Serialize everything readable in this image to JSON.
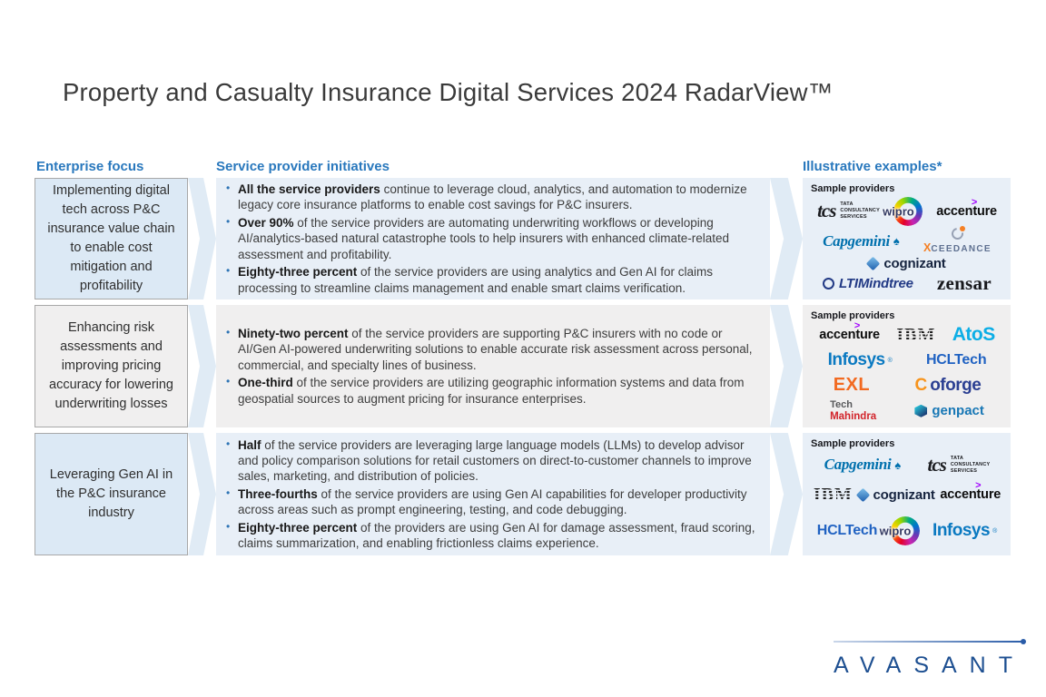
{
  "title": "Property and Casualty Insurance Digital Services 2024 RadarView™",
  "columns": {
    "enterprise_focus": {
      "header": "Enterprise focus"
    },
    "initiatives": {
      "header": "Service provider initiatives"
    },
    "examples": {
      "header": "Illustrative examples*"
    }
  },
  "examples_label": "Sample providers",
  "rows": [
    {
      "tone": "blue",
      "focus": "Implementing digital tech across P&C insurance value chain to enable cost mitigation and profitability",
      "bullets": [
        {
          "lead": "All the service providers",
          "text": "continue to leverage cloud, analytics, and automation to modernize legacy core insurance platforms to enable cost savings for P&C insurers."
        },
        {
          "lead": "Over 90%",
          "text": "of the service providers are automating underwriting workflows or developing AI/analytics-based natural catastrophe tools to help insurers with enhanced climate-related assessment and profitability."
        },
        {
          "lead": "Eighty-three percent",
          "text": "of the service providers are using analytics and Gen AI for claims processing to streamline claims management and enable smart claims verification."
        }
      ],
      "provider_rows": [
        [
          "tcs",
          "wipro",
          "accenture"
        ],
        [
          "capgemini",
          "xceedance"
        ],
        [
          "cognizant"
        ],
        [
          "ltimindtree",
          "zensar"
        ]
      ]
    },
    {
      "tone": "gray",
      "focus": "Enhancing risk assessments and improving pricing accuracy for lowering underwriting losses",
      "bullets": [
        {
          "lead": "Ninety-two percent",
          "text": "of the service providers are supporting P&C insurers with no code or AI/Gen AI-powered underwriting solutions to enable accurate risk assessment across personal, commercial, and specialty lines of business."
        },
        {
          "lead": "One-third",
          "text": "of the service providers are utilizing geographic information systems and data from geospatial sources to augment pricing for insurance enterprises."
        }
      ],
      "provider_rows": [
        [
          "accenture",
          "ibm",
          "atos"
        ],
        [
          "infosys",
          "hcltech"
        ],
        [
          "exl",
          "coforge"
        ],
        [
          "techmahindra",
          "genpact"
        ]
      ]
    },
    {
      "tone": "blue",
      "focus": "Leveraging Gen AI in the P&C insurance industry",
      "bullets": [
        {
          "lead": "Half",
          "text": "of the service providers are leveraging large language models (LLMs) to develop advisor and policy comparison solutions for retail customers on direct-to-customer channels to improve sales, marketing, and distribution of policies."
        },
        {
          "lead": "Three-fourths",
          "text": "of the service providers are using Gen AI capabilities for developer productivity across areas such as prompt engineering, testing, and code debugging."
        },
        {
          "lead": "Eighty-three percent",
          "text": "of the providers are using Gen AI for damage assessment, fraud scoring, claims summarization, and enabling frictionless claims experience."
        }
      ],
      "provider_rows": [
        [
          "capgemini",
          "tcs"
        ],
        [
          "ibm",
          "cognizant",
          "accenture"
        ],
        [
          "hcltech",
          "wipro",
          "infosys"
        ]
      ]
    }
  ],
  "providers": {
    "tcs": {
      "label": "tcs",
      "sub": "TATA CONSULTANCY SERVICES"
    },
    "wipro": {
      "label": "wipro"
    },
    "accenture": {
      "label": "accenture",
      "symbol": ">"
    },
    "capgemini": {
      "label": "Capgemini",
      "symbol": "♠"
    },
    "cognizant": {
      "label": "cognizant"
    },
    "xceedance": {
      "label_x": "X",
      "label_rest": "CEEDANCE"
    },
    "ltimindtree": {
      "label": "LTIMindtree"
    },
    "zensar": {
      "label": "zensar"
    },
    "ibm": {
      "label": "IBM"
    },
    "atos": {
      "label": "AtoS"
    },
    "infosys": {
      "label": "Infosys",
      "reg": "®"
    },
    "hcltech": {
      "label": "HCLTech"
    },
    "exl": {
      "label": "EXL"
    },
    "coforge": {
      "label_c": "C",
      "label_rest": "oforge"
    },
    "techmahindra": {
      "label_top": "Tech",
      "label_bottom": "Mahindra"
    },
    "genpact": {
      "label": "genpact"
    }
  },
  "footer": {
    "logo_text": "AVASANT"
  },
  "colors": {
    "header_blue": "#2978bd",
    "focus_box_blue": "#dce9f5",
    "panel_blue": "#e8eff7",
    "panel_gray": "#f0efef",
    "bullet_blue": "#2e74b5",
    "chevron_blue": "#d8e6f3",
    "avasant_blue": "#1d4f91",
    "title_gray": "#3a3a3a"
  }
}
